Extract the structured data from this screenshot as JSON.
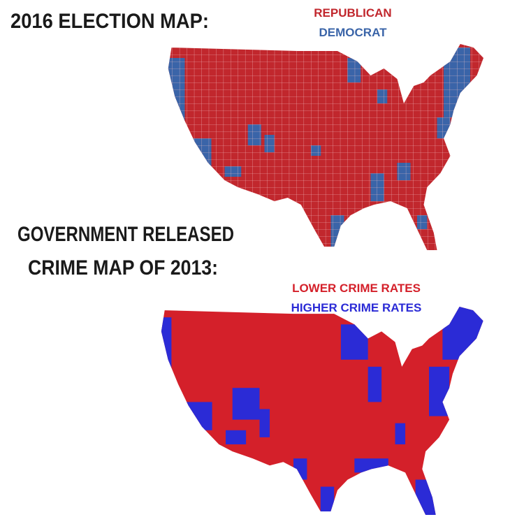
{
  "election_map": {
    "title": "2016 ELECTION MAP:",
    "legend": [
      {
        "label": "REPUBLICAN",
        "color": "#c1272d"
      },
      {
        "label": "DEMOCRAT",
        "color": "#3a64a8"
      }
    ]
  },
  "crime_map": {
    "title": [
      "GOVERNMENT RELEASED",
      "CRIME MAP OF 2013:"
    ],
    "legend": [
      {
        "label": "LOWER CRIME RATES",
        "color": "#d4202a"
      },
      {
        "label": "HIGHER CRIME RATES",
        "color": "#2b2bd6"
      }
    ]
  }
}
